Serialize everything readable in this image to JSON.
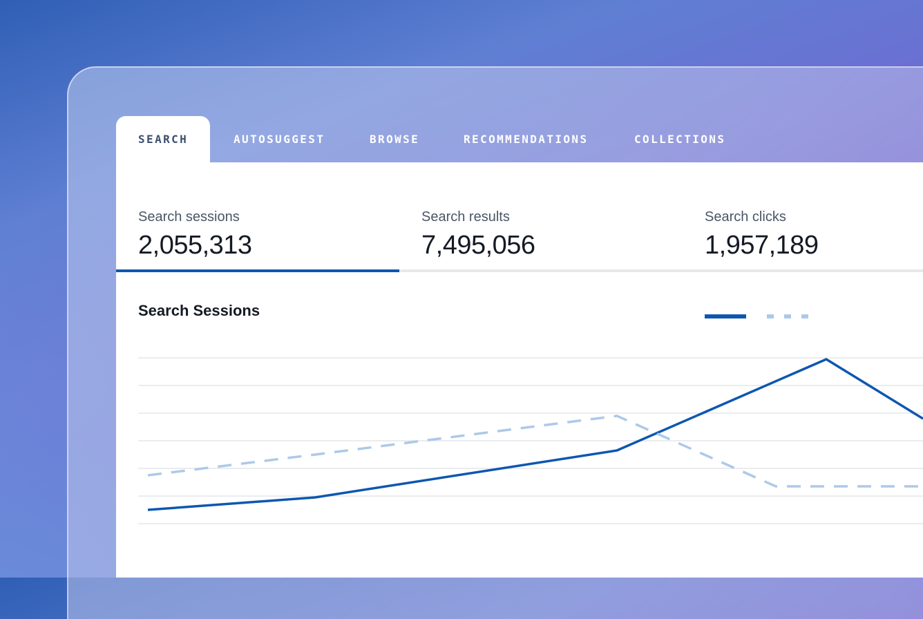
{
  "tabs": [
    {
      "label": "SEARCH",
      "active": true
    },
    {
      "label": "AUTOSUGGEST",
      "active": false
    },
    {
      "label": "BROWSE",
      "active": false
    },
    {
      "label": "RECOMMENDATIONS",
      "active": false
    },
    {
      "label": "COLLECTIONS",
      "active": false
    }
  ],
  "stats": [
    {
      "label": "Search sessions",
      "value": "2,055,313",
      "selected": true
    },
    {
      "label": "Search results",
      "value": "7,495,056",
      "selected": false
    },
    {
      "label": "Search clicks",
      "value": "1,957,189",
      "selected": false
    }
  ],
  "chart": {
    "title": "Search Sessions"
  },
  "colors": {
    "accent": "#0d57b0",
    "comparison": "#adc9e8",
    "text": "#141a24",
    "muted": "#4b5567"
  },
  "chart_data": {
    "type": "line",
    "title": "Search Sessions",
    "x": [
      0,
      1,
      2,
      3,
      4,
      5
    ],
    "ylim": [
      0,
      6
    ],
    "grid": true,
    "legend": "top-right",
    "series": [
      {
        "values": [
          0.5,
          0.95,
          2.65,
          5.95,
          3.8,
          null
        ],
        "style": "solid",
        "color": "#0d57b0"
      },
      {
        "values": [
          1.75,
          2.5,
          3.9,
          1.35,
          1.35,
          null
        ],
        "style": "dashed",
        "color": "#adc9e8"
      }
    ]
  }
}
